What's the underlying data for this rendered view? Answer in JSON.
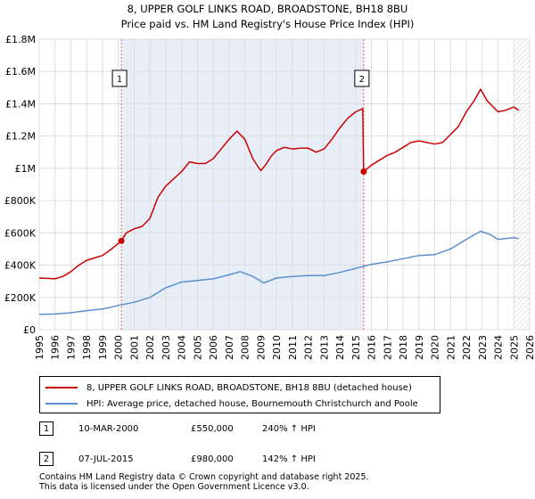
{
  "chart_data": {
    "type": "line",
    "title": "8, UPPER GOLF LINKS ROAD, BROADSTONE, BH18 8BU",
    "subtitle": "Price paid vs. HM Land Registry's House Price Index (HPI)",
    "xlim": [
      1995,
      2026
    ],
    "ylim": [
      0,
      1800000
    ],
    "x_ticks": [
      "1995",
      "1996",
      "1997",
      "1998",
      "1999",
      "2000",
      "2001",
      "2002",
      "2003",
      "2004",
      "2005",
      "2006",
      "2007",
      "2008",
      "2009",
      "2010",
      "2011",
      "2012",
      "2013",
      "2014",
      "2015",
      "2016",
      "2017",
      "2018",
      "2019",
      "2020",
      "2021",
      "2022",
      "2023",
      "2024",
      "2025",
      "2026"
    ],
    "y_ticks": [
      {
        "value": 0,
        "label": "£0"
      },
      {
        "value": 200000,
        "label": "£200K"
      },
      {
        "value": 400000,
        "label": "£400K"
      },
      {
        "value": 600000,
        "label": "£600K"
      },
      {
        "value": 800000,
        "label": "£800K"
      },
      {
        "value": 1000000,
        "label": "£1M"
      },
      {
        "value": 1200000,
        "label": "£1.2M"
      },
      {
        "value": 1400000,
        "label": "£1.4M"
      },
      {
        "value": 1600000,
        "label": "£1.6M"
      },
      {
        "value": 1800000,
        "label": "£1.8M"
      }
    ],
    "shaded_period": {
      "from": 2000.19,
      "to": 2015.51
    },
    "hatched_from": 2025.0,
    "series": [
      {
        "name": "8, UPPER GOLF LINKS ROAD, BROADSTONE, BH18 8BU (detached house)",
        "color": "#cc0000",
        "x": [
          1995.0,
          1995.5,
          1996.0,
          1996.5,
          1997.0,
          1997.5,
          1998.0,
          1998.5,
          1999.0,
          1999.5,
          2000.19,
          2000.5,
          2001.0,
          2001.5,
          2002.0,
          2002.5,
          2003.0,
          2003.5,
          2004.0,
          2004.5,
          2005.0,
          2005.5,
          2006.0,
          2006.5,
          2007.0,
          2007.5,
          2008.0,
          2008.5,
          2009.0,
          2009.3,
          2009.7,
          2010.0,
          2010.5,
          2011.0,
          2011.5,
          2012.0,
          2012.5,
          2013.0,
          2013.5,
          2014.0,
          2014.5,
          2015.0,
          2015.45,
          2015.51,
          2016.0,
          2016.5,
          2017.0,
          2017.5,
          2018.0,
          2018.5,
          2019.0,
          2019.5,
          2020.0,
          2020.5,
          2021.0,
          2021.5,
          2022.0,
          2022.5,
          2022.9,
          2023.3,
          2023.7,
          2024.0,
          2024.5,
          2025.0,
          2025.3
        ],
        "values": [
          320000,
          318000,
          315000,
          330000,
          360000,
          400000,
          430000,
          445000,
          460000,
          495000,
          550000,
          600000,
          625000,
          640000,
          690000,
          820000,
          890000,
          935000,
          980000,
          1040000,
          1030000,
          1030000,
          1060000,
          1120000,
          1180000,
          1230000,
          1180000,
          1060000,
          985000,
          1020000,
          1080000,
          1110000,
          1130000,
          1120000,
          1125000,
          1125000,
          1100000,
          1120000,
          1180000,
          1250000,
          1310000,
          1350000,
          1370000,
          980000,
          1020000,
          1050000,
          1080000,
          1100000,
          1130000,
          1160000,
          1170000,
          1160000,
          1150000,
          1160000,
          1210000,
          1260000,
          1350000,
          1420000,
          1490000,
          1420000,
          1380000,
          1350000,
          1360000,
          1380000,
          1360000
        ]
      },
      {
        "name": "HPI: Average price, detached house, Bournemouth Christchurch and Poole",
        "color": "#5b8fd0",
        "x": [
          1995.0,
          1996.0,
          1997.0,
          1998.0,
          1999.0,
          2000.0,
          2001.0,
          2002.0,
          2003.0,
          2004.0,
          2005.0,
          2006.0,
          2007.0,
          2007.7,
          2008.5,
          2009.2,
          2010.0,
          2011.0,
          2012.0,
          2013.0,
          2014.0,
          2015.0,
          2016.0,
          2017.0,
          2018.0,
          2019.0,
          2020.0,
          2021.0,
          2022.0,
          2022.9,
          2023.5,
          2024.0,
          2025.0,
          2025.3
        ],
        "values": [
          95000,
          97000,
          105000,
          118000,
          128000,
          150000,
          170000,
          200000,
          260000,
          295000,
          305000,
          315000,
          340000,
          360000,
          330000,
          290000,
          320000,
          330000,
          335000,
          335000,
          355000,
          380000,
          405000,
          420000,
          440000,
          460000,
          465000,
          500000,
          560000,
          610000,
          590000,
          560000,
          570000,
          565000
        ]
      }
    ],
    "annotations": [
      {
        "label": "1",
        "x": 2000.19,
        "value": 550000
      },
      {
        "label": "2",
        "x": 2015.51,
        "value": 980000
      }
    ]
  },
  "legend": [
    {
      "label": "8, UPPER GOLF LINKS ROAD, BROADSTONE, BH18 8BU (detached house)",
      "color": "#cc0000"
    },
    {
      "label": "HPI: Average price, detached house, Bournemouth Christchurch and Poole",
      "color": "#5b8fd0"
    }
  ],
  "transactions": [
    {
      "badge": "1",
      "date": "10-MAR-2000",
      "price": "£550,000",
      "hpi": "240% ↑ HPI"
    },
    {
      "badge": "2",
      "date": "07-JUL-2015",
      "price": "£980,000",
      "hpi": "142% ↑ HPI"
    }
  ],
  "footer": {
    "line1": "Contains HM Land Registry data © Crown copyright and database right 2025.",
    "line2": "This data is licensed under the Open Government Licence v3.0."
  }
}
